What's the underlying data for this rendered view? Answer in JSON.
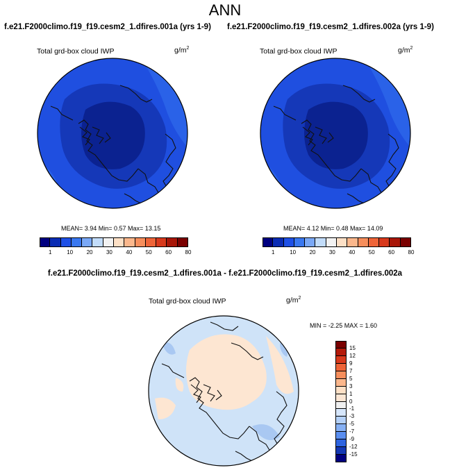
{
  "title": "ANN",
  "panel_left": {
    "case_title": "f.e21.F2000climo.f19_f19.cesm2_1.dfires.001a (yrs 1-9)",
    "variable": "Total grd-box cloud IWP",
    "units": "g/m",
    "units_sup": "2",
    "stats": "MEAN=   3.94  Min=   0.57  Max=  13.15"
  },
  "panel_right": {
    "case_title": "f.e21.F2000climo.f19_f19.cesm2_1.dfires.002a (yrs 1-9)",
    "variable": "Total grd-box cloud IWP",
    "units": "g/m",
    "units_sup": "2",
    "stats": "MEAN=   4.12  Min=   0.48  Max=  14.09"
  },
  "panel_diff": {
    "title": "f.e21.F2000climo.f19_f19.cesm2_1.dfires.001a - f.e21.F2000climo.f19_f19.cesm2_1.dfires.002a",
    "variable": "Total grd-box cloud IWP",
    "units": "g/m",
    "units_sup": "2",
    "stats": "MIN =  -2.25  MAX =   1.60"
  },
  "abs_colorbar": {
    "labels": [
      "1",
      "10",
      "20",
      "30",
      "40",
      "50",
      "60",
      "80"
    ],
    "colors": [
      "#000080",
      "#0a2cb4",
      "#1e50e6",
      "#3a78f0",
      "#7aa8f6",
      "#c2dcfa",
      "#f2f2f2",
      "#fde0c6",
      "#fbb78c",
      "#f68e5c",
      "#ee6438",
      "#d8391c",
      "#a81608",
      "#7a0000"
    ]
  },
  "diff_colorbar": {
    "labels": [
      "15",
      "12",
      "9",
      "7",
      "5",
      "3",
      "1",
      "0",
      "-1",
      "-3",
      "-5",
      "-7",
      "-9",
      "-12",
      "-15"
    ],
    "colors": [
      "#7a0000",
      "#b41a0a",
      "#d8391c",
      "#ee6438",
      "#f68e5c",
      "#fbb78c",
      "#fde0c6",
      "#fbe6d4",
      "#f0f0f0",
      "#d6e6fb",
      "#b4d0f8",
      "#86b0f4",
      "#5a8ef0",
      "#2e64e0",
      "#1438b4",
      "#000080"
    ]
  },
  "colors": {
    "abs_ocean": "#1f4fe0",
    "abs_mid": "#1538b8",
    "abs_core": "#0b2290",
    "abs_outer": "#2a62e8",
    "diff_base": "#cfe3f8",
    "diff_pos": "#fde6d2",
    "diff_neg": "#a9c8f2",
    "coast": "#111111"
  }
}
